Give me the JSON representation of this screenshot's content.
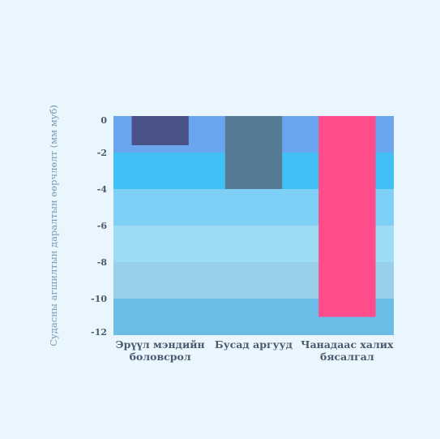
{
  "colors": {
    "background": "#eaf6fd",
    "tick_text": "#4a5a6e",
    "ylabel_text": "#7a9ab0",
    "bands": [
      "#6aa6ee",
      "#41c0f5",
      "#7fd0f6",
      "#9ddcf4",
      "#98cfea",
      "#6bbde8"
    ]
  },
  "chart_data": {
    "type": "bar",
    "title": "",
    "xlabel": "",
    "ylabel": "Судасны агшилтын даралтын өөрчлөлт (мм муб)",
    "ylim": [
      -12,
      0
    ],
    "yticks": [
      0,
      -2,
      -4,
      -6,
      -8,
      -10,
      -12
    ],
    "background_bands": [
      {
        "from": 0,
        "to": -2,
        "color": "#6aa6ee"
      },
      {
        "from": -2,
        "to": -4,
        "color": "#41c0f5"
      },
      {
        "from": -4,
        "to": -6,
        "color": "#7fd0f6"
      },
      {
        "from": -6,
        "to": -8,
        "color": "#9ddcf4"
      },
      {
        "from": -8,
        "to": -10,
        "color": "#98cfea"
      },
      {
        "from": -10,
        "to": -12,
        "color": "#6bbde8"
      }
    ],
    "categories": [
      [
        "Эрүүл мэндийн",
        "боловсрол"
      ],
      [
        "Бусад аргууд"
      ],
      [
        "Чанадаас халих",
        "бясалгал"
      ]
    ],
    "values": [
      -1.6,
      -4.0,
      -11.0
    ],
    "bar_colors": [
      "#4a5388",
      "#567c95",
      "#ff4c8b"
    ],
    "grid": false,
    "legend": "none"
  }
}
